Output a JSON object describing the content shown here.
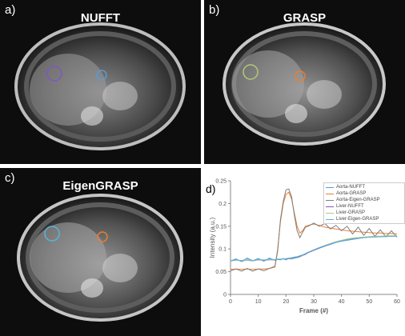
{
  "panels": {
    "a": {
      "letter": "a)",
      "title": "NUFFT"
    },
    "b": {
      "letter": "b)",
      "title": "GRASP"
    },
    "c": {
      "letter": "c)",
      "title": "EigenGRASP"
    },
    "d": {
      "letter": "d)"
    }
  },
  "colors": {
    "aorta_nufft": "#5b9bd5",
    "aorta_grasp": "#ed7d31",
    "aorta_eigen": "#7f7f7f",
    "liver_nufft": "#7e57c2",
    "liver_grasp": "#b5c777",
    "liver_eigen": "#5bb4d9"
  },
  "chart_data": {
    "type": "line",
    "title": "",
    "xlabel": "Frame (#)",
    "ylabel": "Intensity (a.u.)",
    "xlim": [
      0,
      60
    ],
    "ylim": [
      0,
      0.25
    ],
    "xticks": [
      0,
      10,
      20,
      30,
      40,
      50,
      60
    ],
    "yticks": [
      0,
      0.05,
      0.1,
      0.15,
      0.2,
      0.25
    ],
    "grid": false,
    "legend_position": "top-right",
    "x": [
      0,
      2,
      4,
      6,
      8,
      10,
      12,
      14,
      16,
      17,
      18,
      19,
      20,
      21,
      22,
      23,
      24,
      25,
      26,
      27,
      28,
      30,
      32,
      34,
      36,
      38,
      40,
      42,
      44,
      46,
      48,
      50,
      52,
      54,
      56,
      58,
      60
    ],
    "series": [
      {
        "name": "Aorta-NUFFT",
        "color_key": "aorta_nufft",
        "values": [
          0.074,
          0.078,
          0.072,
          0.08,
          0.074,
          0.079,
          0.073,
          0.08,
          0.075,
          0.077,
          0.076,
          0.079,
          0.076,
          0.079,
          0.078,
          0.08,
          0.081,
          0.083,
          0.086,
          0.088,
          0.092,
          0.097,
          0.102,
          0.106,
          0.11,
          0.114,
          0.117,
          0.119,
          0.121,
          0.123,
          0.125,
          0.126,
          0.127,
          0.127,
          0.128,
          0.128,
          0.129
        ]
      },
      {
        "name": "Aorta-GRASP",
        "color_key": "aorta_grasp",
        "values": [
          0.055,
          0.056,
          0.055,
          0.056,
          0.055,
          0.056,
          0.056,
          0.057,
          0.06,
          0.1,
          0.16,
          0.2,
          0.22,
          0.225,
          0.21,
          0.18,
          0.15,
          0.135,
          0.14,
          0.15,
          0.152,
          0.155,
          0.152,
          0.148,
          0.146,
          0.144,
          0.142,
          0.14,
          0.139,
          0.138,
          0.137,
          0.136,
          0.135,
          0.135,
          0.134,
          0.134,
          0.133
        ]
      },
      {
        "name": "Aorta-Eigen-GRASP",
        "color_key": "aorta_eigen",
        "values": [
          0.052,
          0.056,
          0.051,
          0.057,
          0.051,
          0.056,
          0.052,
          0.057,
          0.062,
          0.095,
          0.165,
          0.205,
          0.23,
          0.232,
          0.215,
          0.175,
          0.14,
          0.125,
          0.137,
          0.148,
          0.15,
          0.157,
          0.15,
          0.156,
          0.144,
          0.152,
          0.14,
          0.15,
          0.133,
          0.148,
          0.13,
          0.145,
          0.128,
          0.142,
          0.127,
          0.14,
          0.126
        ]
      },
      {
        "name": "Liver-NUFFT",
        "color_key": "liver_nufft",
        "values": [
          0.074,
          0.076,
          0.074,
          0.075,
          0.074,
          0.076,
          0.075,
          0.076,
          0.076,
          0.077,
          0.077,
          0.078,
          0.078,
          0.079,
          0.08,
          0.081,
          0.082,
          0.084,
          0.086,
          0.089,
          0.092,
          0.097,
          0.102,
          0.107,
          0.111,
          0.115,
          0.118,
          0.121,
          0.123,
          0.124,
          0.125,
          0.126,
          0.127,
          0.127,
          0.128,
          0.128,
          0.128
        ]
      },
      {
        "name": "Liver-GRASP",
        "color_key": "liver_grasp",
        "values": [
          0.075,
          0.075,
          0.075,
          0.075,
          0.075,
          0.076,
          0.076,
          0.076,
          0.077,
          0.077,
          0.078,
          0.078,
          0.079,
          0.08,
          0.081,
          0.082,
          0.083,
          0.085,
          0.087,
          0.09,
          0.093,
          0.098,
          0.103,
          0.108,
          0.112,
          0.116,
          0.119,
          0.122,
          0.124,
          0.125,
          0.126,
          0.127,
          0.128,
          0.128,
          0.129,
          0.129,
          0.129
        ]
      },
      {
        "name": "Liver-Eigen-GRASP",
        "color_key": "liver_eigen",
        "values": [
          0.073,
          0.076,
          0.074,
          0.078,
          0.074,
          0.077,
          0.075,
          0.078,
          0.076,
          0.078,
          0.077,
          0.079,
          0.078,
          0.08,
          0.08,
          0.082,
          0.083,
          0.085,
          0.087,
          0.09,
          0.093,
          0.098,
          0.103,
          0.107,
          0.111,
          0.115,
          0.118,
          0.12,
          0.122,
          0.124,
          0.125,
          0.126,
          0.126,
          0.127,
          0.127,
          0.128,
          0.128
        ]
      }
    ]
  }
}
